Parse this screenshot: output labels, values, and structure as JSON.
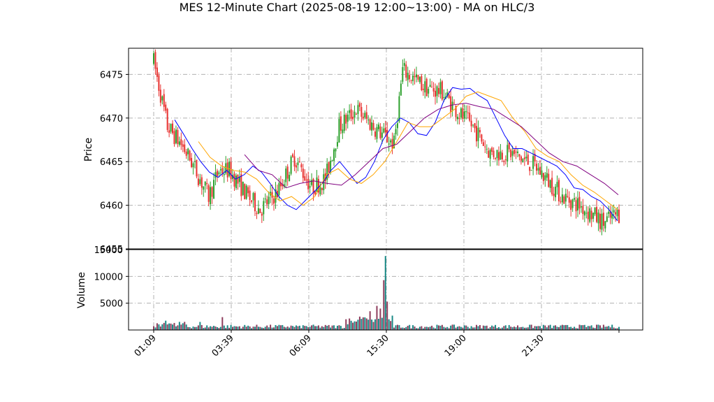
{
  "chart_data": {
    "type": "candlestick",
    "title": "MES 12-Minute Chart (2025-08-19 12:00~13:00) - MA on HLC/3",
    "price_panel": {
      "ylabel": "Price",
      "ylim": [
        6455,
        6478
      ],
      "yticks": [
        "6455",
        "6460",
        "6465",
        "6470",
        "6475"
      ],
      "up_color": "#2ca02c",
      "down_color": "#e8312f",
      "ma_series": [
        {
          "color": "#0000ff",
          "values": [
            6469.8,
            6468.2,
            6466.5,
            6465.0,
            6463.8,
            6463.2,
            6464.0,
            6463.0,
            6463.5,
            6464.5,
            6463.8,
            6462.5,
            6461.0,
            6460.0,
            6459.5,
            6460.5,
            6461.5,
            6462.5,
            6464.0,
            6465.0,
            6463.8,
            6462.5,
            6463.2,
            6465.0,
            6467.5,
            6469.0,
            6470.0,
            6469.5,
            6468.2,
            6468.0,
            6469.5,
            6472.0,
            6473.5,
            6473.3,
            6473.4,
            6472.6,
            6472.0,
            6470.0,
            6468.0,
            6466.5,
            6466.5,
            6466.0,
            6465.5,
            6465.0,
            6464.5,
            6463.5,
            6462.0,
            6461.8,
            6461.0,
            6460.5,
            6459.5,
            6458.2
          ]
        },
        {
          "color": "#ffa500",
          "values": [
            6467.3,
            6465.5,
            6464.5,
            6464.0,
            6463.8,
            6463.0,
            6461.5,
            6460.5,
            6461.0,
            6460.0,
            6461.0,
            6463.5,
            6464.2,
            6463.0,
            6462.5,
            6463.5,
            6465.0,
            6467.2,
            6469.5,
            6469.0,
            6469.0,
            6470.0,
            6471.0,
            6472.5,
            6473.0,
            6472.5,
            6472.0,
            6470.0,
            6468.5,
            6466.5,
            6465.6,
            6465.0,
            6463.5,
            6462.3,
            6461.5,
            6460.5,
            6459.5
          ]
        },
        {
          "color": "#800080",
          "values": [
            6465.8,
            6464.0,
            6463.5,
            6462.0,
            6462.5,
            6462.8,
            6462.5,
            6462.3,
            6463.5,
            6465.0,
            6466.5,
            6467.0,
            6468.5,
            6470.0,
            6471.0,
            6471.5,
            6471.7,
            6471.3,
            6471.0,
            6470.0,
            6469.0,
            6467.5,
            6466.0,
            6465.0,
            6464.5,
            6463.5,
            6462.5,
            6461.2
          ]
        }
      ]
    },
    "volume_panel": {
      "ylabel": "Volume",
      "ylim": [
        0,
        15000
      ],
      "yticks": [
        "5000",
        "10000",
        "15000"
      ],
      "colors": [
        "#8e3d5c",
        "#1a8a86"
      ]
    },
    "x_ticks": [
      "01:09",
      "03:39",
      "06:09",
      "15:30",
      "19:00",
      "21:30"
    ]
  }
}
